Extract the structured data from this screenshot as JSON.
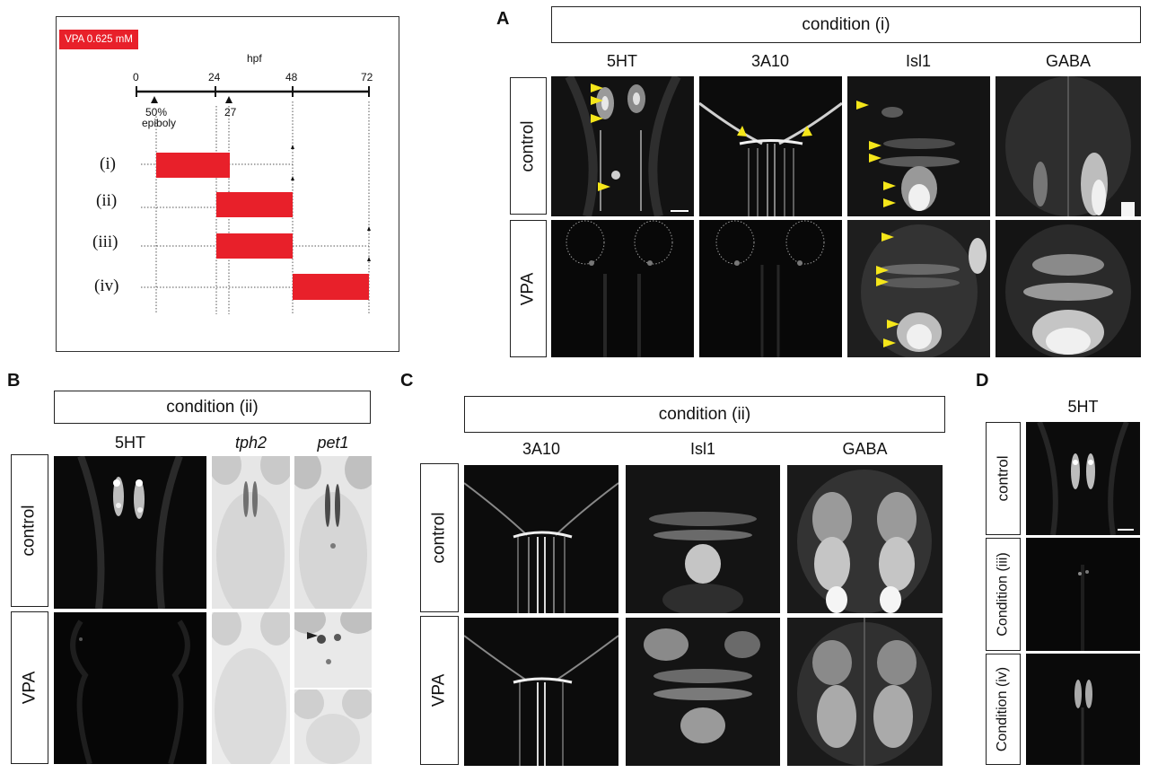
{
  "timeline": {
    "treatment_label": "VPA 0.625 mM",
    "axis_title": "hpf",
    "ticks": [
      "0",
      "24",
      "48",
      "72"
    ],
    "marker_50": "50%",
    "marker_epiboly": "epiboly",
    "marker_27": "27",
    "conditions": [
      "(i)",
      "(ii)",
      "(iii)",
      "(iv)"
    ],
    "bar_color": "#e8202a",
    "bars": [
      {
        "condition": "(i)",
        "start_hpf": 5.25,
        "end_hpf": 27
      },
      {
        "condition": "(ii)",
        "start_hpf": 24,
        "end_hpf": 48
      },
      {
        "condition": "(iii)",
        "start_hpf": 24,
        "end_hpf": 48
      },
      {
        "condition": "(iv)",
        "start_hpf": 48,
        "end_hpf": 72
      }
    ]
  },
  "panelA": {
    "letter": "A",
    "condition": "condition (i)",
    "columns": [
      "5HT",
      "3A10",
      "Isl1",
      "GABA"
    ],
    "rows": [
      "control",
      "VPA"
    ],
    "arrowhead_color": "#f5e61a"
  },
  "panelB": {
    "letter": "B",
    "condition": "condition (ii)",
    "columns": [
      "5HT",
      "tph2",
      "pet1"
    ],
    "rows": [
      "control",
      "VPA"
    ]
  },
  "panelC": {
    "letter": "C",
    "condition": "condition (ii)",
    "columns": [
      "3A10",
      "Isl1",
      "GABA"
    ],
    "rows": [
      "control",
      "VPA"
    ]
  },
  "panelD": {
    "letter": "D",
    "column": "5HT",
    "rows": [
      "control",
      "Condition (iii)",
      "Condition (iv)"
    ]
  }
}
